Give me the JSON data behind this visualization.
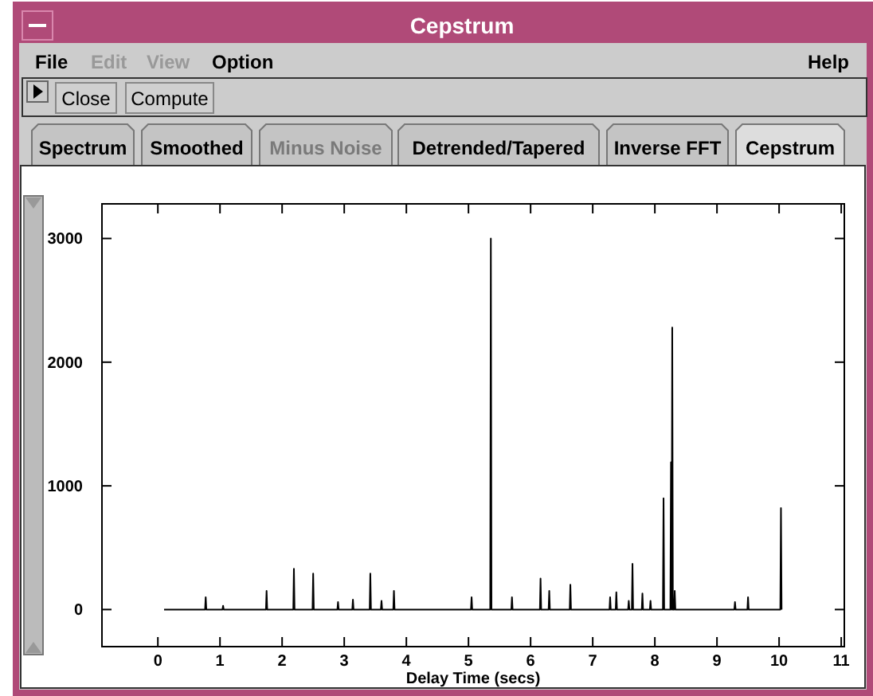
{
  "chart_data": {
    "type": "line",
    "title": "Cepstrum",
    "xlabel": "Delay Time (secs)",
    "annotations": [
      "File",
      "Edit",
      "View",
      "Option",
      "Help",
      "Close",
      "Compute",
      "Spectrum",
      "Smoothed",
      "Minus Noise",
      "Detrended/Tapered",
      "Inverse FFT",
      "Cepstrum"
    ],
    "xlim": [
      -0.9,
      11.05
    ],
    "ylim": [
      -300,
      3280
    ],
    "xticks": [
      0,
      1,
      2,
      3,
      4,
      5,
      6,
      7,
      8,
      9,
      10,
      11
    ],
    "yticks": [
      0,
      1000,
      2000,
      3000
    ],
    "grid": false,
    "marker": "none",
    "line_style": "solid",
    "series": [
      {
        "color": "#000000",
        "x": [
          0.1,
          0.76,
          0.77,
          0.78,
          1.04,
          1.05,
          1.06,
          1.74,
          1.75,
          1.76,
          2.18,
          2.19,
          2.2,
          2.49,
          2.5,
          2.51,
          2.89,
          2.9,
          2.91,
          3.13,
          3.14,
          3.15,
          3.41,
          3.42,
          3.43,
          3.59,
          3.6,
          3.61,
          3.79,
          3.8,
          3.81,
          5.04,
          5.05,
          5.06,
          5.35,
          5.36,
          5.37,
          5.69,
          5.7,
          5.71,
          6.15,
          6.16,
          6.17,
          6.29,
          6.3,
          6.31,
          6.63,
          6.64,
          6.65,
          7.27,
          7.28,
          7.29,
          7.37,
          7.38,
          7.39,
          7.57,
          7.58,
          7.59,
          7.63,
          7.64,
          7.65,
          7.79,
          7.8,
          7.81,
          7.92,
          7.93,
          7.94,
          8.13,
          8.14,
          8.15,
          8.25,
          8.26,
          8.27,
          8.28,
          8.29,
          8.31,
          8.32,
          8.33,
          9.28,
          9.29,
          9.3,
          9.49,
          9.5,
          9.51,
          10.02,
          10.03,
          10.04
        ],
        "values": [
          0,
          0,
          100,
          0,
          0,
          30,
          0,
          0,
          150,
          0,
          0,
          330,
          0,
          0,
          290,
          0,
          0,
          60,
          0,
          0,
          80,
          0,
          0,
          290,
          0,
          0,
          70,
          0,
          0,
          150,
          0,
          0,
          100,
          0,
          0,
          3000,
          0,
          0,
          100,
          0,
          0,
          250,
          0,
          0,
          150,
          0,
          0,
          200,
          0,
          0,
          100,
          0,
          0,
          140,
          0,
          0,
          70,
          0,
          0,
          370,
          0,
          0,
          130,
          0,
          0,
          70,
          0,
          0,
          900,
          0,
          0,
          1190,
          0,
          2280,
          0,
          0,
          150,
          0,
          0,
          60,
          0,
          0,
          100,
          0,
          0,
          820,
          0
        ]
      }
    ]
  }
}
